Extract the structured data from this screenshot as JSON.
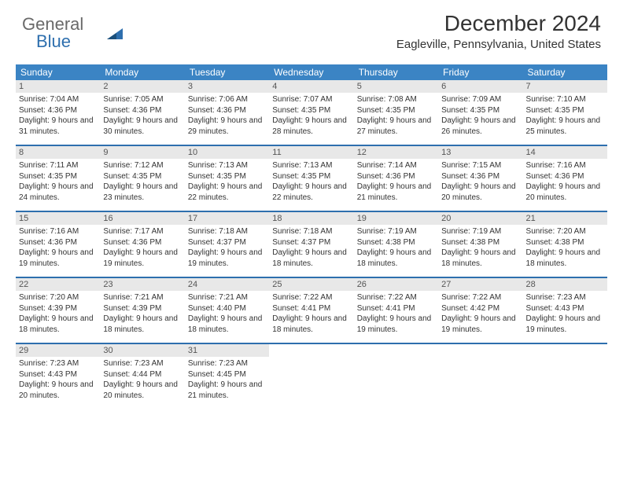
{
  "logo": {
    "part1": "General",
    "part2": "Blue"
  },
  "title": "December 2024",
  "subtitle": "Eagleville, Pennsylvania, United States",
  "colors": {
    "header_bg": "#3b84c4",
    "header_text": "#ffffff",
    "row_border": "#2e6fae",
    "daynum_bg": "#e8e8e8",
    "logo_gray": "#6a6a6a",
    "logo_blue": "#2e6fae"
  },
  "days_of_week": [
    "Sunday",
    "Monday",
    "Tuesday",
    "Wednesday",
    "Thursday",
    "Friday",
    "Saturday"
  ],
  "weeks": [
    [
      {
        "n": "1",
        "sunrise": "7:04 AM",
        "sunset": "4:36 PM",
        "daylight": "9 hours and 31 minutes."
      },
      {
        "n": "2",
        "sunrise": "7:05 AM",
        "sunset": "4:36 PM",
        "daylight": "9 hours and 30 minutes."
      },
      {
        "n": "3",
        "sunrise": "7:06 AM",
        "sunset": "4:36 PM",
        "daylight": "9 hours and 29 minutes."
      },
      {
        "n": "4",
        "sunrise": "7:07 AM",
        "sunset": "4:35 PM",
        "daylight": "9 hours and 28 minutes."
      },
      {
        "n": "5",
        "sunrise": "7:08 AM",
        "sunset": "4:35 PM",
        "daylight": "9 hours and 27 minutes."
      },
      {
        "n": "6",
        "sunrise": "7:09 AM",
        "sunset": "4:35 PM",
        "daylight": "9 hours and 26 minutes."
      },
      {
        "n": "7",
        "sunrise": "7:10 AM",
        "sunset": "4:35 PM",
        "daylight": "9 hours and 25 minutes."
      }
    ],
    [
      {
        "n": "8",
        "sunrise": "7:11 AM",
        "sunset": "4:35 PM",
        "daylight": "9 hours and 24 minutes."
      },
      {
        "n": "9",
        "sunrise": "7:12 AM",
        "sunset": "4:35 PM",
        "daylight": "9 hours and 23 minutes."
      },
      {
        "n": "10",
        "sunrise": "7:13 AM",
        "sunset": "4:35 PM",
        "daylight": "9 hours and 22 minutes."
      },
      {
        "n": "11",
        "sunrise": "7:13 AM",
        "sunset": "4:35 PM",
        "daylight": "9 hours and 22 minutes."
      },
      {
        "n": "12",
        "sunrise": "7:14 AM",
        "sunset": "4:36 PM",
        "daylight": "9 hours and 21 minutes."
      },
      {
        "n": "13",
        "sunrise": "7:15 AM",
        "sunset": "4:36 PM",
        "daylight": "9 hours and 20 minutes."
      },
      {
        "n": "14",
        "sunrise": "7:16 AM",
        "sunset": "4:36 PM",
        "daylight": "9 hours and 20 minutes."
      }
    ],
    [
      {
        "n": "15",
        "sunrise": "7:16 AM",
        "sunset": "4:36 PM",
        "daylight": "9 hours and 19 minutes."
      },
      {
        "n": "16",
        "sunrise": "7:17 AM",
        "sunset": "4:36 PM",
        "daylight": "9 hours and 19 minutes."
      },
      {
        "n": "17",
        "sunrise": "7:18 AM",
        "sunset": "4:37 PM",
        "daylight": "9 hours and 19 minutes."
      },
      {
        "n": "18",
        "sunrise": "7:18 AM",
        "sunset": "4:37 PM",
        "daylight": "9 hours and 18 minutes."
      },
      {
        "n": "19",
        "sunrise": "7:19 AM",
        "sunset": "4:38 PM",
        "daylight": "9 hours and 18 minutes."
      },
      {
        "n": "20",
        "sunrise": "7:19 AM",
        "sunset": "4:38 PM",
        "daylight": "9 hours and 18 minutes."
      },
      {
        "n": "21",
        "sunrise": "7:20 AM",
        "sunset": "4:38 PM",
        "daylight": "9 hours and 18 minutes."
      }
    ],
    [
      {
        "n": "22",
        "sunrise": "7:20 AM",
        "sunset": "4:39 PM",
        "daylight": "9 hours and 18 minutes."
      },
      {
        "n": "23",
        "sunrise": "7:21 AM",
        "sunset": "4:39 PM",
        "daylight": "9 hours and 18 minutes."
      },
      {
        "n": "24",
        "sunrise": "7:21 AM",
        "sunset": "4:40 PM",
        "daylight": "9 hours and 18 minutes."
      },
      {
        "n": "25",
        "sunrise": "7:22 AM",
        "sunset": "4:41 PM",
        "daylight": "9 hours and 18 minutes."
      },
      {
        "n": "26",
        "sunrise": "7:22 AM",
        "sunset": "4:41 PM",
        "daylight": "9 hours and 19 minutes."
      },
      {
        "n": "27",
        "sunrise": "7:22 AM",
        "sunset": "4:42 PM",
        "daylight": "9 hours and 19 minutes."
      },
      {
        "n": "28",
        "sunrise": "7:23 AM",
        "sunset": "4:43 PM",
        "daylight": "9 hours and 19 minutes."
      }
    ],
    [
      {
        "n": "29",
        "sunrise": "7:23 AM",
        "sunset": "4:43 PM",
        "daylight": "9 hours and 20 minutes."
      },
      {
        "n": "30",
        "sunrise": "7:23 AM",
        "sunset": "4:44 PM",
        "daylight": "9 hours and 20 minutes."
      },
      {
        "n": "31",
        "sunrise": "7:23 AM",
        "sunset": "4:45 PM",
        "daylight": "9 hours and 21 minutes."
      },
      null,
      null,
      null,
      null
    ]
  ],
  "labels": {
    "sunrise": "Sunrise: ",
    "sunset": "Sunset: ",
    "daylight": "Daylight: "
  }
}
